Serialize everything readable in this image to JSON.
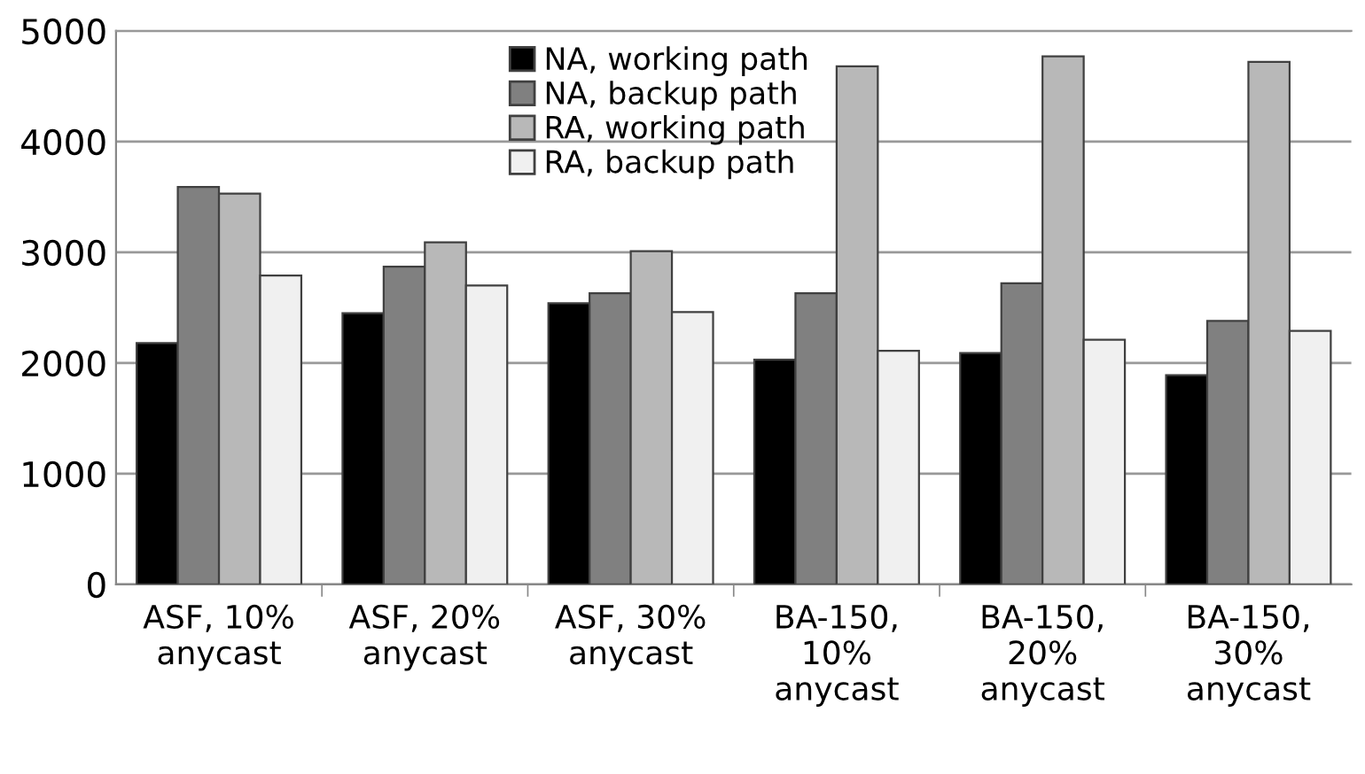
{
  "chart_data": {
    "type": "bar",
    "categories": [
      "ASF, 10%\nanycast",
      "ASF, 20%\nanycast",
      "ASF, 30%\nanycast",
      "BA-150,\n10%\nanycast",
      "BA-150,\n20%\nanycast",
      "BA-150,\n30%\nanycast"
    ],
    "series": [
      {
        "name": "NA, working path",
        "color": "#000000",
        "values": [
          2180,
          2450,
          2540,
          2030,
          2090,
          1890
        ]
      },
      {
        "name": "NA, backup path",
        "color": "#808080",
        "values": [
          3590,
          2870,
          2630,
          2630,
          2720,
          2380
        ]
      },
      {
        "name": "RA, working path",
        "color": "#b8b8b8",
        "values": [
          3530,
          3090,
          3010,
          4680,
          4770,
          4720
        ]
      },
      {
        "name": "RA, backup path",
        "color": "#f0f0f0",
        "values": [
          2790,
          2700,
          2460,
          2110,
          2210,
          2290
        ]
      }
    ],
    "ylim": [
      0,
      5000
    ],
    "yticks": [
      0,
      1000,
      2000,
      3000,
      4000,
      5000
    ],
    "grid": "y",
    "legend": "top"
  }
}
